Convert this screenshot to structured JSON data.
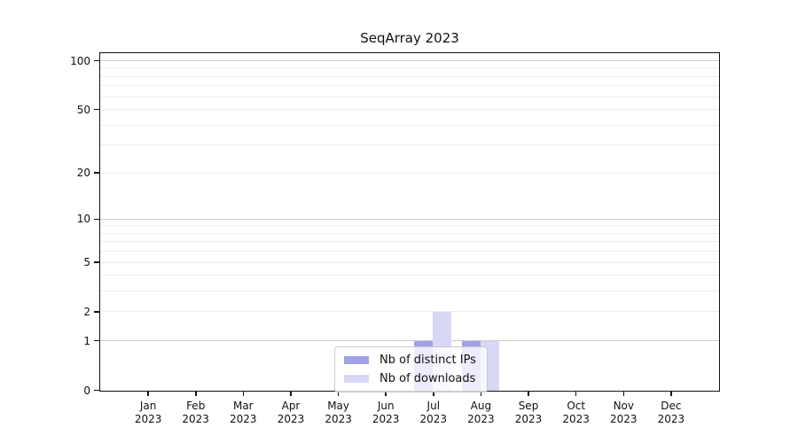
{
  "chart_data": {
    "type": "bar",
    "title": "SeqArray 2023",
    "categories": [
      "Jan 2023",
      "Feb 2023",
      "Mar 2023",
      "Apr 2023",
      "May 2023",
      "Jun 2023",
      "Jul 2023",
      "Aug 2023",
      "Sep 2023",
      "Oct 2023",
      "Nov 2023",
      "Dec 2023"
    ],
    "series": [
      {
        "name": "Nb of distinct IPs",
        "color": "#a2a2e9",
        "values": [
          0,
          0,
          0,
          0,
          0,
          0,
          1,
          1,
          0,
          0,
          0,
          0
        ]
      },
      {
        "name": "Nb of downloads",
        "color": "#d8d8f6",
        "values": [
          0,
          0,
          0,
          0,
          0,
          0,
          2,
          1,
          0,
          0,
          0,
          0
        ]
      }
    ],
    "xlabel": "",
    "ylabel": "",
    "yscale": "log10(count+1)",
    "ylim": [
      0,
      105
    ],
    "yticks": [
      0,
      1,
      2,
      5,
      10,
      20,
      50,
      100
    ],
    "grid": "horizontal",
    "gridline_values_minor": [
      2,
      3,
      4,
      5,
      6,
      7,
      8,
      9,
      20,
      30,
      40,
      50,
      60,
      70,
      80,
      90
    ],
    "gridline_values_major": [
      1,
      10,
      100
    ],
    "legend_position": "bottom-center"
  },
  "colors": {
    "grid_minor": "#ededed",
    "grid_major": "#cccccc",
    "axis": "#111111",
    "bar_distinct_ips": "#a2a2e9",
    "bar_downloads": "#d8d8f6",
    "legend_border": "#c9c9c9"
  }
}
